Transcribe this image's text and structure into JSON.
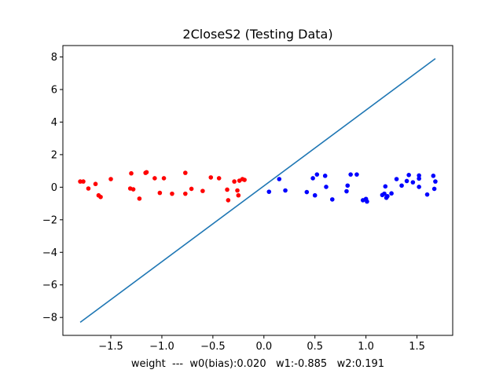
{
  "chart_data": {
    "type": "scatter",
    "title": "2CloseS2 (Testing Data)",
    "xlabel": "weight  ---  w0(bias):0.020   w1:-0.885   w2:0.191",
    "ylabel": "",
    "xlim": [
      -1.97,
      1.85
    ],
    "ylim": [
      -9.1,
      8.7
    ],
    "xticks": [
      -1.5,
      -1.0,
      -0.5,
      0.0,
      0.5,
      1.0,
      1.5
    ],
    "xtick_labels": [
      "−1.5",
      "−1.0",
      "−0.5",
      "0.0",
      "0.5",
      "1.0",
      "1.5"
    ],
    "yticks": [
      -8,
      -6,
      -4,
      -2,
      0,
      2,
      4,
      6,
      8
    ],
    "ytick_labels": [
      "−8",
      "−6",
      "−4",
      "−2",
      "0",
      "2",
      "4",
      "6",
      "8"
    ],
    "grid": false,
    "series": [
      {
        "color": "#ff0000",
        "points": [
          [
            -1.8,
            0.35
          ],
          [
            -1.77,
            0.35
          ],
          [
            -1.72,
            -0.08
          ],
          [
            -1.65,
            0.2
          ],
          [
            -1.62,
            -0.5
          ],
          [
            -1.6,
            -0.6
          ],
          [
            -1.5,
            0.5
          ],
          [
            -1.31,
            -0.08
          ],
          [
            -1.3,
            0.85
          ],
          [
            -1.28,
            -0.13
          ],
          [
            -1.22,
            -0.7
          ],
          [
            -1.16,
            0.88
          ],
          [
            -1.15,
            0.92
          ],
          [
            -1.07,
            0.55
          ],
          [
            -1.02,
            -0.35
          ],
          [
            -0.98,
            0.55
          ],
          [
            -0.9,
            -0.4
          ],
          [
            -0.77,
            0.88
          ],
          [
            -0.77,
            -0.4
          ],
          [
            -0.71,
            -0.1
          ],
          [
            -0.6,
            -0.23
          ],
          [
            -0.52,
            0.6
          ],
          [
            -0.44,
            0.55
          ],
          [
            -0.36,
            -0.15
          ],
          [
            -0.35,
            -0.8
          ],
          [
            -0.29,
            0.35
          ],
          [
            -0.26,
            -0.2
          ],
          [
            -0.25,
            -0.5
          ],
          [
            -0.24,
            0.4
          ],
          [
            -0.21,
            0.5
          ],
          [
            -0.19,
            0.45
          ]
        ]
      },
      {
        "color": "#0000ff",
        "points": [
          [
            0.05,
            -0.28
          ],
          [
            0.15,
            0.5
          ],
          [
            0.21,
            -0.2
          ],
          [
            0.42,
            -0.3
          ],
          [
            0.48,
            0.55
          ],
          [
            0.5,
            -0.5
          ],
          [
            0.52,
            0.78
          ],
          [
            0.6,
            0.7
          ],
          [
            0.61,
            0.02
          ],
          [
            0.67,
            -0.75
          ],
          [
            0.81,
            -0.25
          ],
          [
            0.82,
            0.1
          ],
          [
            0.85,
            0.78
          ],
          [
            0.91,
            0.78
          ],
          [
            0.97,
            -0.8
          ],
          [
            1.0,
            -0.72
          ],
          [
            1.01,
            -0.88
          ],
          [
            1.16,
            -0.48
          ],
          [
            1.18,
            -0.4
          ],
          [
            1.19,
            0.05
          ],
          [
            1.2,
            -0.65
          ],
          [
            1.21,
            -0.55
          ],
          [
            1.25,
            -0.38
          ],
          [
            1.3,
            0.5
          ],
          [
            1.35,
            0.1
          ],
          [
            1.4,
            0.38
          ],
          [
            1.42,
            0.75
          ],
          [
            1.46,
            0.3
          ],
          [
            1.52,
            0.72
          ],
          [
            1.52,
            0.53
          ],
          [
            1.52,
            0.02
          ],
          [
            1.6,
            -0.45
          ],
          [
            1.66,
            0.7
          ],
          [
            1.67,
            -0.1
          ],
          [
            1.68,
            0.35
          ]
        ]
      }
    ],
    "line": {
      "color": "#1f77b4",
      "x": [
        -1.8,
        1.68
      ],
      "y": [
        -8.3,
        7.9
      ]
    }
  }
}
